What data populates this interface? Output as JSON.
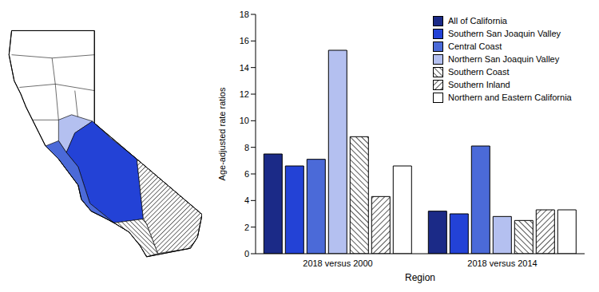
{
  "chart_data": {
    "type": "bar",
    "categories": [
      "2018 versus 2000",
      "2018 versus 2014"
    ],
    "series": [
      {
        "name": "All of California",
        "color": "#1b2a87",
        "values": [
          7.5,
          3.2
        ]
      },
      {
        "name": "Southern San Joaquin Valley",
        "color": "#2342d6",
        "values": [
          6.6,
          3.0
        ]
      },
      {
        "name": "Central Coast",
        "color": "#4b6ad8",
        "values": [
          7.1,
          8.1
        ]
      },
      {
        "name": "Northern San Joaquin Valley",
        "color": "#b4c0f0",
        "values": [
          15.3,
          2.8
        ]
      },
      {
        "name": "Southern Coast",
        "color": "#555555",
        "values": [
          8.8,
          2.5
        ]
      },
      {
        "name": "Southern Inland",
        "color": "#555555",
        "values": [
          4.3,
          3.3
        ]
      },
      {
        "name": "Northern and Eastern California",
        "color": "#ffffff",
        "values": [
          6.6,
          3.3
        ]
      }
    ],
    "x_label": "Region",
    "y_label": "Age-adjusted rate ratios",
    "ylim": [
      0,
      18
    ],
    "yticks": [
      0,
      2,
      4,
      6,
      8,
      10,
      12,
      14,
      16,
      18
    ],
    "legend": "top-right",
    "grid": false
  }
}
